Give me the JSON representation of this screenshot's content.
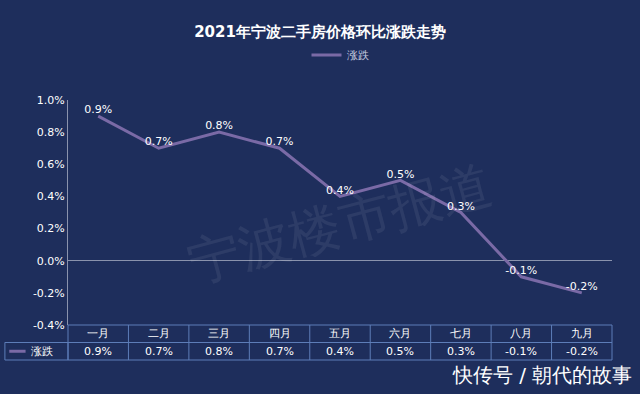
{
  "chart_data": {
    "type": "line",
    "title": "2021年宁波二手房价格环比涨跌走势",
    "categories": [
      "一月",
      "二月",
      "三月",
      "四月",
      "五月",
      "六月",
      "七月",
      "八月",
      "九月"
    ],
    "series": [
      {
        "name": "涨跌",
        "color": "#7a6aa6",
        "values": [
          0.9,
          0.7,
          0.8,
          0.7,
          0.4,
          0.5,
          0.3,
          -0.1,
          -0.2
        ],
        "value_labels": [
          "0.9%",
          "0.7%",
          "0.8%",
          "0.7%",
          "0.4%",
          "0.5%",
          "0.3%",
          "-0.1%",
          "-0.2%"
        ]
      }
    ],
    "ylim": [
      -0.4,
      1.0
    ],
    "yticks": [
      {
        "value": -0.4,
        "label": "-0.4%"
      },
      {
        "value": -0.2,
        "label": "-0.2%"
      },
      {
        "value": 0,
        "label": "0.0%"
      },
      {
        "value": 0.2,
        "label": "0.2%"
      },
      {
        "value": 0.4,
        "label": "0.4%"
      },
      {
        "value": 0.6,
        "label": "0.6%"
      },
      {
        "value": 0.8,
        "label": "0.8%"
      },
      {
        "value": 1.0,
        "label": "1.0%"
      }
    ],
    "grid": false,
    "legend": "top",
    "data_labels": true,
    "annotations": [
      "宁波楼市报道",
      "快传号 / 朝代的故事"
    ]
  }
}
